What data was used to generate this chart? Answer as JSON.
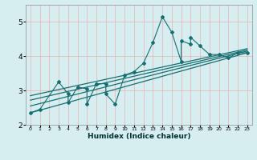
{
  "title": "",
  "xlabel": "Humidex (Indice chaleur)",
  "xlim": [
    -0.5,
    23.5
  ],
  "ylim": [
    2,
    5.5
  ],
  "yticks": [
    2,
    3,
    4,
    5
  ],
  "xticks": [
    0,
    1,
    2,
    3,
    4,
    5,
    6,
    7,
    8,
    9,
    10,
    11,
    12,
    13,
    14,
    15,
    16,
    17,
    18,
    19,
    20,
    21,
    22,
    23
  ],
  "bg_color": "#d6eef0",
  "grid_color": "#e8b0b0",
  "line_color": "#147070",
  "scatter_data": [
    [
      0,
      2.35
    ],
    [
      1,
      2.45
    ],
    [
      3,
      3.25
    ],
    [
      4,
      2.9
    ],
    [
      4,
      2.65
    ],
    [
      5,
      3.1
    ],
    [
      6,
      3.05
    ],
    [
      6,
      2.6
    ],
    [
      7,
      3.2
    ],
    [
      7,
      3.2
    ],
    [
      8,
      3.2
    ],
    [
      8,
      2.9
    ],
    [
      9,
      2.6
    ],
    [
      10,
      3.45
    ],
    [
      11,
      3.55
    ],
    [
      12,
      3.8
    ],
    [
      13,
      4.4
    ],
    [
      14,
      5.15
    ],
    [
      15,
      4.7
    ],
    [
      16,
      3.85
    ],
    [
      16,
      4.45
    ],
    [
      17,
      4.35
    ],
    [
      17,
      4.55
    ],
    [
      18,
      4.3
    ],
    [
      19,
      4.05
    ],
    [
      20,
      4.05
    ],
    [
      21,
      3.95
    ],
    [
      22,
      4.1
    ],
    [
      23,
      4.1
    ]
  ],
  "line1": [
    [
      0,
      2.35
    ],
    [
      23,
      4.1
    ]
  ],
  "line2": [
    [
      0,
      2.55
    ],
    [
      23,
      4.15
    ]
  ],
  "line3": [
    [
      0,
      2.72
    ],
    [
      23,
      4.18
    ]
  ],
  "line4": [
    [
      0,
      2.85
    ],
    [
      23,
      4.22
    ]
  ]
}
